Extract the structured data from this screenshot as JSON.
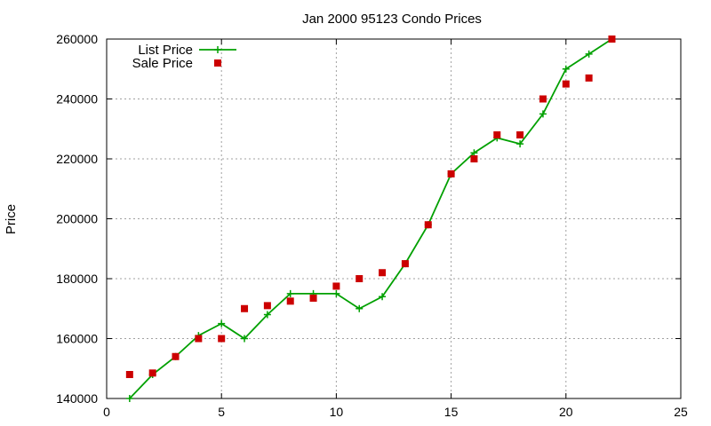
{
  "chart_data": {
    "type": "line",
    "title": "Jan 2000 95123 Condo Prices",
    "xlabel": "",
    "ylabel": "Price",
    "xlim": [
      0,
      25
    ],
    "ylim": [
      140000,
      260000
    ],
    "x_ticks": [
      0,
      5,
      10,
      15,
      20,
      25
    ],
    "y_ticks": [
      140000,
      160000,
      180000,
      200000,
      220000,
      240000,
      260000
    ],
    "grid": true,
    "legend_position": "top-left",
    "series": [
      {
        "name": "List Price",
        "style": "line-with-plus-markers",
        "color": "#00a000",
        "x": [
          1,
          2,
          3,
          4,
          5,
          6,
          7,
          8,
          9,
          10,
          11,
          12,
          13,
          14,
          15,
          16,
          17,
          18,
          19,
          20,
          21,
          22
        ],
        "values": [
          140000,
          148000,
          154000,
          161000,
          165000,
          160000,
          168000,
          175000,
          175000,
          175000,
          170000,
          174000,
          185000,
          198000,
          215000,
          222000,
          227000,
          225000,
          235000,
          250000,
          255000,
          260000
        ]
      },
      {
        "name": "Sale Price",
        "style": "square-markers",
        "color": "#cc0000",
        "x": [
          1,
          2,
          3,
          4,
          5,
          6,
          7,
          8,
          9,
          10,
          11,
          12,
          13,
          14,
          15,
          16,
          17,
          18,
          19,
          20,
          21,
          22
        ],
        "values": [
          148000,
          148500,
          154000,
          160000,
          160000,
          170000,
          171000,
          172500,
          173500,
          177500,
          180000,
          182000,
          185000,
          198000,
          215000,
          220000,
          228000,
          228000,
          240000,
          245000,
          247000,
          260000
        ]
      }
    ]
  }
}
